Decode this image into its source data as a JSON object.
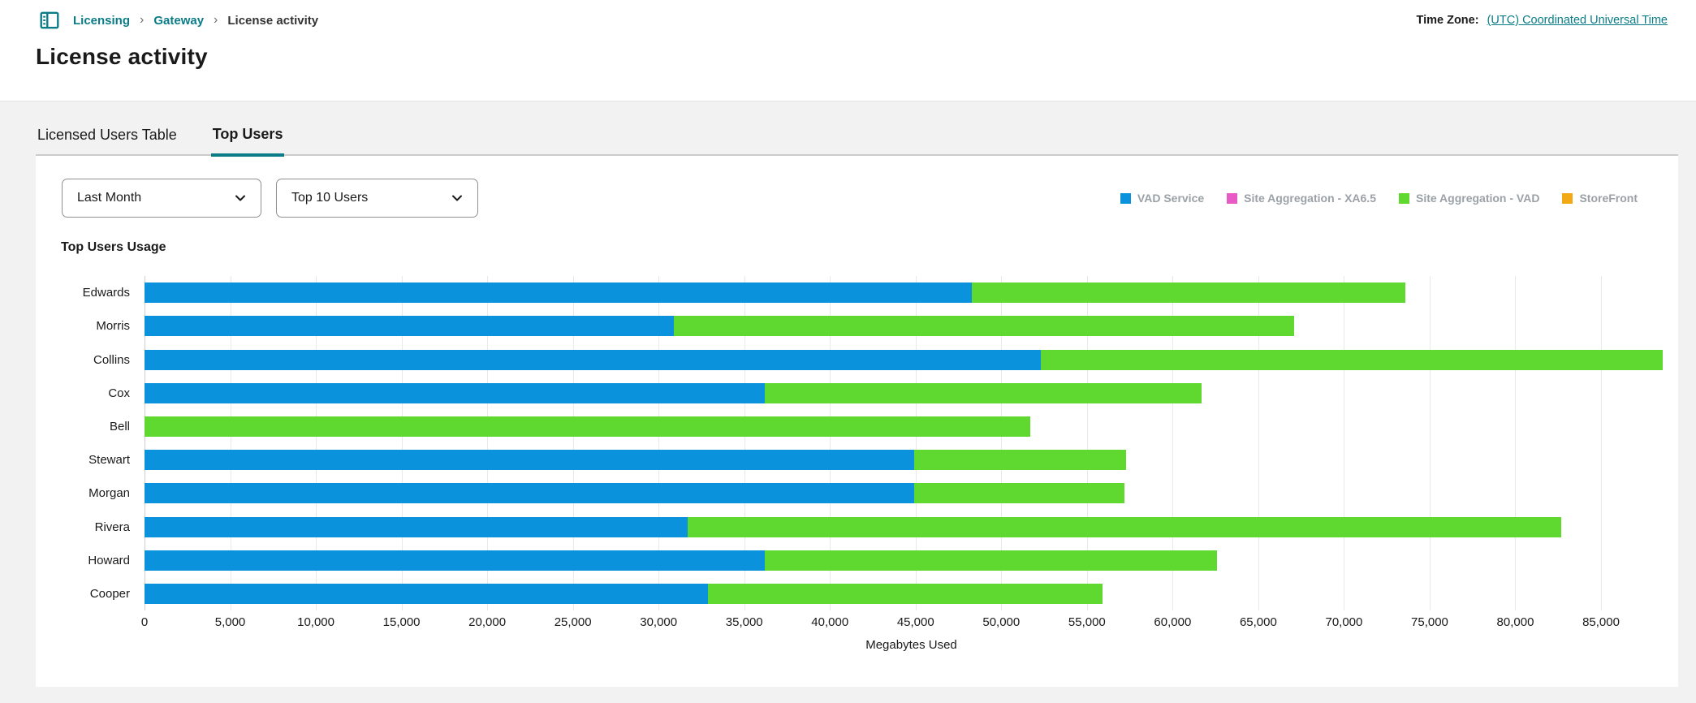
{
  "header": {
    "breadcrumb": {
      "separator": "›",
      "items": [
        {
          "label": "Licensing"
        },
        {
          "label": "Gateway"
        },
        {
          "label": "License activity"
        }
      ]
    },
    "timezone_label": "Time Zone:",
    "timezone_value": "(UTC) Coordinated Universal Time",
    "page_title": "License activity"
  },
  "tabs": [
    {
      "label": "Licensed Users Table",
      "active": false
    },
    {
      "label": "Top Users",
      "active": true
    }
  ],
  "filters": {
    "period": "Last Month",
    "top_users": "Top 10 Users"
  },
  "colors": {
    "accent_teal": "#0a7c87",
    "vad_service": "#0a93dc",
    "site_aggregation_xa65": "#e85bc5",
    "site_aggregation_vad": "#5fd930",
    "storefront": "#f2a913"
  },
  "chart_data": {
    "type": "bar",
    "orientation": "horizontal",
    "stacked": true,
    "title": "Top Users Usage",
    "xlabel": "Megabytes Used",
    "grid": true,
    "legend_position": "top-right",
    "categories": [
      "Edwards",
      "Morris",
      "Collins",
      "Cox",
      "Bell",
      "Stewart",
      "Morgan",
      "Rivera",
      "Howard",
      "Cooper"
    ],
    "series": [
      {
        "name": "VAD Service",
        "color": "#0a93dc",
        "values": [
          48300,
          30900,
          52300,
          36200,
          0,
          44900,
          44900,
          31700,
          36200,
          32900
        ]
      },
      {
        "name": "Site Aggregation - XA6.5",
        "color": "#e85bc5",
        "values": [
          0,
          0,
          0,
          0,
          0,
          0,
          0,
          0,
          0,
          0
        ]
      },
      {
        "name": "Site Aggregation - VAD",
        "color": "#5fd930",
        "values": [
          25300,
          36200,
          36300,
          25500,
          51700,
          12400,
          12300,
          51000,
          26400,
          23000
        ]
      },
      {
        "name": "StoreFront",
        "color": "#f2a913",
        "values": [
          0,
          0,
          0,
          0,
          0,
          0,
          0,
          0,
          0,
          0
        ]
      }
    ],
    "totals": [
      73600,
      67100,
      88600,
      61700,
      51700,
      57300,
      57200,
      82700,
      62600,
      55900
    ],
    "ticks": [
      0,
      5000,
      10000,
      15000,
      20000,
      25000,
      30000,
      35000,
      40000,
      45000,
      50000,
      55000,
      60000,
      65000,
      70000,
      75000,
      80000,
      85000
    ],
    "tick_labels": [
      "0",
      "5,000",
      "10,000",
      "15,000",
      "20,000",
      "25,000",
      "30,000",
      "35,000",
      "40,000",
      "45,000",
      "50,000",
      "55,000",
      "60,000",
      "65,000",
      "70,000",
      "75,000",
      "80,000",
      "85,000"
    ],
    "axis_max": 89500
  }
}
